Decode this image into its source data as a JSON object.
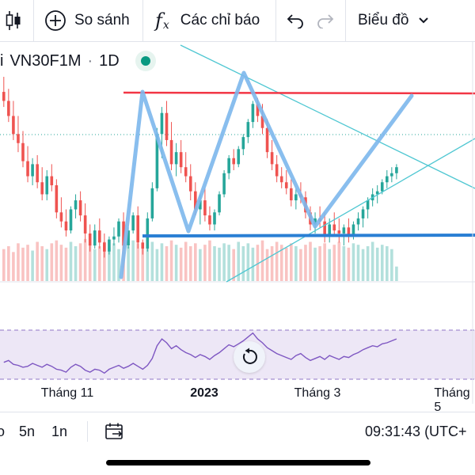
{
  "toolbar": {
    "compare_label": "So sánh",
    "indicators_label": "Các chỉ báo",
    "fx_symbol": "f",
    "fx_sub": "x",
    "chart_type_label": "Biểu đồ"
  },
  "legend": {
    "symbol_prefix": "i",
    "symbol": "VN30F1M",
    "separator": "·",
    "interval": "1D",
    "status_color": "#089981"
  },
  "time_axis": {
    "labels": [
      "Tháng 11",
      "2023",
      "Tháng 3",
      "Tháng 5"
    ]
  },
  "bottom_bar": {
    "range_partial": "o",
    "range_5m": "5n",
    "range_1y": "1n",
    "time": "09:31:43 (UTC+"
  },
  "colors": {
    "up": "#26a69a",
    "down": "#ef5350",
    "resistance": "#f23645",
    "support": "#2a7fd4",
    "pattern": "#7cb7ec",
    "channel": "#4fc7d2",
    "rsi_line": "#7e57c2",
    "rsi_band": "#ede7f6"
  },
  "icons": {
    "candles": "candlestick-icon",
    "compare": "plus-circle-icon",
    "indicators": "fx-icon",
    "undo": "undo-icon",
    "redo": "redo-icon",
    "dropdown": "chevron-down-icon",
    "reset": "reset-icon",
    "date_range": "date-range-icon"
  },
  "candles": [
    [
      1210,
      1235,
      1185,
      1195
    ],
    [
      1195,
      1215,
      1160,
      1170
    ],
    [
      1170,
      1195,
      1130,
      1140
    ],
    [
      1140,
      1170,
      1110,
      1125
    ],
    [
      1125,
      1145,
      1085,
      1095
    ],
    [
      1095,
      1120,
      1060,
      1070
    ],
    [
      1070,
      1100,
      1055,
      1090
    ],
    [
      1090,
      1105,
      1050,
      1060
    ],
    [
      1060,
      1085,
      1030,
      1040
    ],
    [
      1040,
      1080,
      1030,
      1070
    ],
    [
      1070,
      1090,
      1045,
      1055
    ],
    [
      1055,
      1065,
      1000,
      1010
    ],
    [
      1010,
      1035,
      985,
      995
    ],
    [
      995,
      1015,
      970,
      980
    ],
    [
      980,
      1020,
      975,
      1015
    ],
    [
      1015,
      1040,
      1000,
      1030
    ],
    [
      1030,
      1045,
      995,
      1005
    ],
    [
      1005,
      1025,
      960,
      975
    ],
    [
      975,
      990,
      945,
      955
    ],
    [
      955,
      990,
      950,
      980
    ],
    [
      980,
      1000,
      950,
      960
    ],
    [
      960,
      975,
      935,
      945
    ],
    [
      945,
      970,
      940,
      965
    ],
    [
      965,
      985,
      955,
      970
    ],
    [
      970,
      1000,
      960,
      995
    ],
    [
      995,
      1010,
      950,
      955
    ],
    [
      955,
      985,
      950,
      980
    ],
    [
      980,
      1010,
      975,
      1005
    ],
    [
      1005,
      1020,
      950,
      960
    ],
    [
      960,
      965,
      940,
      950
    ],
    [
      950,
      1010,
      945,
      1000
    ],
    [
      1000,
      1060,
      995,
      1050
    ],
    [
      1050,
      1150,
      1045,
      1140
    ],
    [
      1140,
      1185,
      1100,
      1175
    ],
    [
      1175,
      1195,
      1120,
      1130
    ],
    [
      1130,
      1160,
      1080,
      1090
    ],
    [
      1090,
      1125,
      1070,
      1110
    ],
    [
      1110,
      1130,
      1075,
      1085
    ],
    [
      1085,
      1110,
      1060,
      1070
    ],
    [
      1070,
      1090,
      1030,
      1045
    ],
    [
      1045,
      1060,
      1005,
      1015
    ],
    [
      1015,
      1040,
      990,
      1030
    ],
    [
      1030,
      1050,
      995,
      1005
    ],
    [
      1005,
      1020,
      980,
      990
    ],
    [
      990,
      1015,
      980,
      1010
    ],
    [
      1010,
      1045,
      1005,
      1040
    ],
    [
      1040,
      1080,
      1035,
      1075
    ],
    [
      1075,
      1105,
      1065,
      1100
    ],
    [
      1100,
      1115,
      1080,
      1090
    ],
    [
      1090,
      1120,
      1085,
      1115
    ],
    [
      1115,
      1140,
      1105,
      1135
    ],
    [
      1135,
      1165,
      1125,
      1160
    ],
    [
      1160,
      1195,
      1150,
      1190
    ],
    [
      1190,
      1200,
      1160,
      1170
    ],
    [
      1170,
      1190,
      1140,
      1150
    ],
    [
      1150,
      1165,
      1100,
      1110
    ],
    [
      1110,
      1130,
      1080,
      1090
    ],
    [
      1090,
      1105,
      1060,
      1070
    ],
    [
      1070,
      1085,
      1050,
      1060
    ],
    [
      1060,
      1080,
      1040,
      1050
    ],
    [
      1050,
      1065,
      1020,
      1030
    ],
    [
      1030,
      1050,
      1015,
      1040
    ],
    [
      1040,
      1060,
      1025,
      1035
    ],
    [
      1035,
      1045,
      1000,
      1010
    ],
    [
      1010,
      1020,
      980,
      990
    ],
    [
      990,
      1010,
      975,
      1000
    ],
    [
      1000,
      1020,
      985,
      995
    ],
    [
      995,
      1010,
      960,
      970
    ],
    [
      970,
      1000,
      960,
      990
    ],
    [
      990,
      1010,
      970,
      980
    ],
    [
      980,
      1000,
      960,
      975
    ],
    [
      975,
      990,
      955,
      985
    ],
    [
      985,
      1000,
      960,
      970
    ],
    [
      970,
      995,
      965,
      990
    ],
    [
      990,
      1010,
      980,
      1000
    ],
    [
      1000,
      1020,
      985,
      1015
    ],
    [
      1015,
      1035,
      1000,
      1030
    ],
    [
      1030,
      1050,
      1020,
      1040
    ],
    [
      1040,
      1055,
      1025,
      1045
    ],
    [
      1045,
      1065,
      1040,
      1060
    ],
    [
      1060,
      1080,
      1050,
      1070
    ],
    [
      1070,
      1085,
      1060,
      1075
    ],
    [
      1075,
      1090,
      1065,
      1085
    ]
  ],
  "volumes": [
    22,
    24,
    20,
    26,
    23,
    25,
    21,
    27,
    24,
    22,
    26,
    28,
    25,
    23,
    27,
    24,
    26,
    29,
    25,
    22,
    24,
    27,
    23,
    26,
    22,
    25,
    24,
    28,
    26,
    23,
    25,
    27,
    22,
    26,
    24,
    28,
    25,
    23,
    27,
    24,
    26,
    22,
    25,
    28,
    24,
    23,
    26,
    25,
    22,
    27,
    24,
    26,
    23,
    25,
    28,
    22,
    24,
    27,
    25,
    23,
    26,
    24,
    22,
    25,
    27,
    23,
    24,
    26,
    22,
    25,
    27,
    24,
    23,
    26,
    25,
    22,
    24,
    27,
    23,
    25,
    24,
    22,
    10
  ],
  "rsi": [
    38,
    40,
    36,
    35,
    33,
    34,
    37,
    35,
    33,
    36,
    34,
    31,
    30,
    28,
    33,
    36,
    34,
    30,
    28,
    31,
    30,
    27,
    31,
    33,
    35,
    32,
    34,
    37,
    34,
    31,
    35,
    42,
    55,
    62,
    58,
    52,
    55,
    51,
    48,
    46,
    43,
    46,
    44,
    41,
    45,
    48,
    52,
    56,
    54,
    57,
    60,
    64,
    68,
    62,
    58,
    53,
    50,
    47,
    45,
    43,
    41,
    45,
    47,
    43,
    40,
    42,
    44,
    41,
    45,
    43,
    41,
    44,
    43,
    46,
    48,
    51,
    53,
    55,
    54,
    57,
    58,
    60,
    62
  ]
}
